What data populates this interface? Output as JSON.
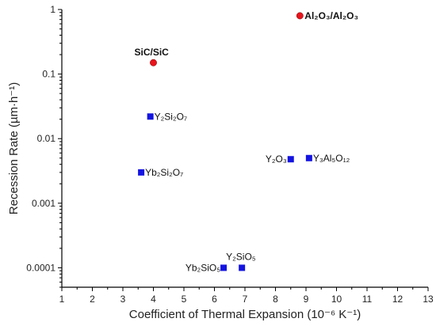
{
  "chart_data": {
    "type": "scatter",
    "title": "",
    "xlabel": "Coefficient of Thermal Expansion (10⁻⁶ K⁻¹)",
    "ylabel": "Recession Rate (µm·h⁻¹)",
    "xlim": [
      1,
      13
    ],
    "ylim": [
      5e-05,
      1
    ],
    "y_scale": "log",
    "x_ticks": [
      "1",
      "2",
      "3",
      "4",
      "5",
      "6",
      "7",
      "8",
      "9",
      "10",
      "11",
      "12",
      "13"
    ],
    "y_ticks": [
      "0.0001",
      "0.001",
      "0.01",
      "0.1",
      "1"
    ],
    "grid": false,
    "series": [
      {
        "marker": "circle",
        "color": "#e8141c",
        "points": [
          {
            "label": "SiC/SiC",
            "x": 4.0,
            "y": 0.15
          },
          {
            "label": "Al₂O₃/Al₂O₃",
            "x": 8.8,
            "y": 0.8
          }
        ]
      },
      {
        "marker": "square",
        "color": "#1414e0",
        "points": [
          {
            "label": "Y₂Si₂O₇",
            "x": 3.9,
            "y": 0.022
          },
          {
            "label": "Yb₂Si₂O₇",
            "x": 3.6,
            "y": 0.003
          },
          {
            "label": "Y₂O₃",
            "x": 8.5,
            "y": 0.0048
          },
          {
            "label": "Y₃Al₅O₁₂",
            "x": 9.1,
            "y": 0.005
          },
          {
            "label": "Yb₂SiO₅",
            "x": 6.3,
            "y": 0.0001
          },
          {
            "label": "Y₂SiO₅",
            "x": 6.9,
            "y": 0.0001
          }
        ]
      }
    ]
  }
}
